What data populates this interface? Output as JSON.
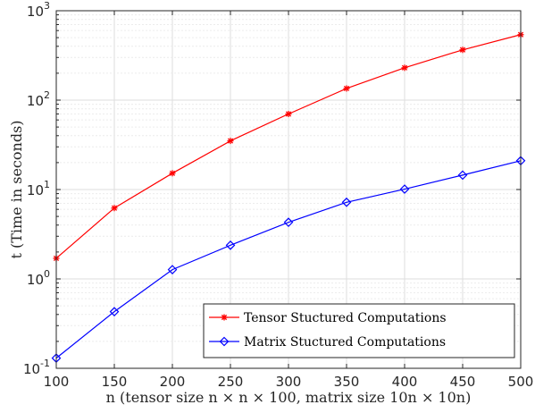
{
  "chart_data": {
    "type": "line",
    "xlabel": "n (tensor size n × n × 100, matrix size 10n × 10n)",
    "ylabel": "t (Time in seconds)",
    "x": [
      100,
      150,
      200,
      250,
      300,
      350,
      400,
      450,
      500
    ],
    "x_ticks": [
      "100",
      "150",
      "200",
      "250",
      "300",
      "350",
      "400",
      "450",
      "500"
    ],
    "xlim": [
      100,
      500
    ],
    "ylim": [
      0.1,
      1000
    ],
    "y_scale": "log",
    "y_ticks": [
      {
        "base": "10",
        "exp": "-1"
      },
      {
        "base": "10",
        "exp": "0"
      },
      {
        "base": "10",
        "exp": "1"
      },
      {
        "base": "10",
        "exp": "2"
      },
      {
        "base": "10",
        "exp": "3"
      }
    ],
    "grid": true,
    "legend_position": "bottom-right",
    "series": [
      {
        "name": "Tensor Stuctured Computations",
        "color": "#ff0000",
        "marker": "asterisk",
        "values": [
          1.7,
          6.2,
          15.2,
          35,
          70,
          135,
          230,
          365,
          540
        ]
      },
      {
        "name": "Matrix Stuctured Computations",
        "color": "#0000ff",
        "marker": "diamond",
        "values": [
          0.13,
          0.43,
          1.27,
          2.38,
          4.3,
          7.2,
          10.1,
          14.5,
          21
        ]
      }
    ]
  }
}
